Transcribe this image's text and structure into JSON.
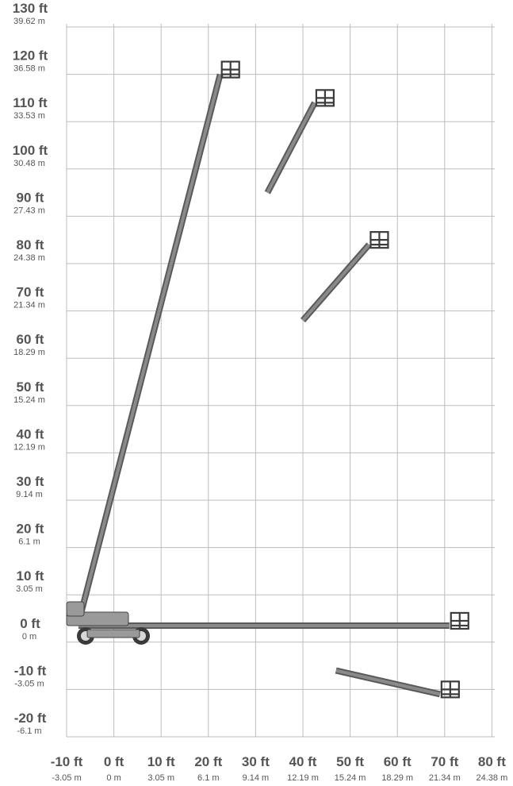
{
  "chart_data": {
    "type": "diagram",
    "y_ticks": [
      {
        "ft": "130 ft",
        "m": "39.62 m",
        "value": 130
      },
      {
        "ft": "120 ft",
        "m": "36.58 m",
        "value": 120
      },
      {
        "ft": "110 ft",
        "m": "33.53 m",
        "value": 110
      },
      {
        "ft": "100 ft",
        "m": "30.48 m",
        "value": 100
      },
      {
        "ft": "90 ft",
        "m": "27.43 m",
        "value": 90
      },
      {
        "ft": "80 ft",
        "m": "24.38 m",
        "value": 80
      },
      {
        "ft": "70 ft",
        "m": "21.34 m",
        "value": 70
      },
      {
        "ft": "60 ft",
        "m": "18.29 m",
        "value": 60
      },
      {
        "ft": "50 ft",
        "m": "15.24 m",
        "value": 50
      },
      {
        "ft": "40 ft",
        "m": "12.19 m",
        "value": 40
      },
      {
        "ft": "30 ft",
        "m": "9.14 m",
        "value": 30
      },
      {
        "ft": "20 ft",
        "m": "6.1 m",
        "value": 20
      },
      {
        "ft": "10 ft",
        "m": "3.05 m",
        "value": 10
      },
      {
        "ft": "0 ft",
        "m": "0 m",
        "value": 0
      },
      {
        "ft": "-10 ft",
        "m": "-3.05 m",
        "value": -10
      },
      {
        "ft": "-20 ft",
        "m": "-6.1 m",
        "value": -20
      }
    ],
    "x_ticks": [
      {
        "ft": "-10 ft",
        "m": "-3.05 m",
        "value": -10
      },
      {
        "ft": "0 ft",
        "m": "0 m",
        "value": 0
      },
      {
        "ft": "10 ft",
        "m": "3.05 m",
        "value": 10
      },
      {
        "ft": "20 ft",
        "m": "6.1 m",
        "value": 20
      },
      {
        "ft": "30 ft",
        "m": "9.14 m",
        "value": 30
      },
      {
        "ft": "40 ft",
        "m": "12.19 m",
        "value": 40
      },
      {
        "ft": "50 ft",
        "m": "15.24 m",
        "value": 50
      },
      {
        "ft": "60 ft",
        "m": "18.29 m",
        "value": 60
      },
      {
        "ft": "70 ft",
        "m": "21.34 m",
        "value": 70
      },
      {
        "ft": "80 ft",
        "m": "24.38 m",
        "value": 80
      }
    ],
    "xlim": [
      -10,
      80
    ],
    "ylim": [
      -20,
      130
    ],
    "grid": true,
    "booms": [
      {
        "name": "full-extension-vertical",
        "from": [
          -7.5,
          4
        ],
        "to": [
          22.5,
          120
        ],
        "basket": true
      },
      {
        "name": "mid-position-upper",
        "from": [
          32.5,
          95
        ],
        "to": [
          42.5,
          114
        ],
        "basket": true
      },
      {
        "name": "mid-position-middle",
        "from": [
          40,
          68
        ],
        "to": [
          54,
          84
        ],
        "basket": true
      },
      {
        "name": "full-extension-horizontal",
        "from": [
          -7.5,
          3.5
        ],
        "to": [
          71,
          3.5
        ],
        "basket": true
      },
      {
        "name": "below-grade",
        "from": [
          47,
          -6
        ],
        "to": [
          69,
          -11
        ],
        "basket": true
      }
    ],
    "colors": {
      "grid": "#bdbdbd",
      "boom": "#737373",
      "labels": "#555555"
    }
  }
}
